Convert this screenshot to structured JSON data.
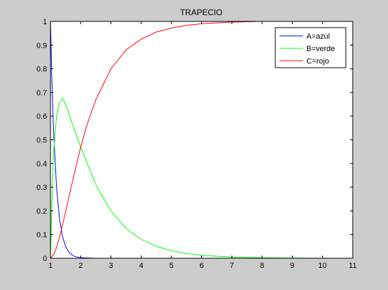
{
  "chart_data": {
    "type": "line",
    "title": "TRAPECIO",
    "xlabel": "",
    "ylabel": "",
    "xlim": [
      1,
      11
    ],
    "ylim": [
      0,
      1
    ],
    "xticks": [
      "1",
      "2",
      "3",
      "4",
      "5",
      "6",
      "7",
      "8",
      "9",
      "10",
      "11"
    ],
    "yticks": [
      "0",
      "0.1",
      "0.2",
      "0.3",
      "0.4",
      "0.5",
      "0.6",
      "0.7",
      "0.8",
      "0.9",
      "1"
    ],
    "grid": false,
    "legend_position": "top-right",
    "colors": {
      "background": "#cccccc",
      "axes": "#ffffff"
    },
    "series": [
      {
        "name": "A=azul",
        "color": "#0000ff",
        "x": [
          1,
          10
        ],
        "y": [
          1,
          0
        ],
        "samples": [
          [
            1.0,
            1.0
          ],
          [
            1.05,
            0.735
          ],
          [
            1.1,
            0.54
          ],
          [
            1.2,
            0.3
          ],
          [
            1.3,
            0.165
          ],
          [
            1.4,
            0.09
          ],
          [
            1.5,
            0.05
          ],
          [
            1.6,
            0.027
          ],
          [
            1.7,
            0.015
          ],
          [
            1.8,
            0.008
          ],
          [
            2.0,
            0.002
          ],
          [
            2.5,
            0.0
          ],
          [
            10.0,
            0.0
          ]
        ]
      },
      {
        "name": "B=verde",
        "color": "#00ff00",
        "x": [
          1,
          10
        ],
        "y": [
          0,
          0
        ],
        "samples": [
          [
            1.0,
            0.0
          ],
          [
            1.05,
            0.255
          ],
          [
            1.1,
            0.445
          ],
          [
            1.2,
            0.6
          ],
          [
            1.3,
            0.66
          ],
          [
            1.4,
            0.675
          ],
          [
            1.5,
            0.65
          ],
          [
            1.7,
            0.575
          ],
          [
            1.9,
            0.505
          ],
          [
            2.0,
            0.47
          ],
          [
            2.5,
            0.31
          ],
          [
            3.0,
            0.2
          ],
          [
            3.5,
            0.125
          ],
          [
            4.0,
            0.08
          ],
          [
            4.5,
            0.05
          ],
          [
            5.0,
            0.032
          ],
          [
            5.5,
            0.02
          ],
          [
            6.0,
            0.012
          ],
          [
            7.0,
            0.005
          ],
          [
            8.0,
            0.002
          ],
          [
            9.0,
            0.001
          ],
          [
            10.0,
            0.0
          ]
        ]
      },
      {
        "name": "C=rojo",
        "color": "#ff0000",
        "x": [
          1,
          7.8
        ],
        "y": [
          0,
          1
        ],
        "samples": [
          [
            1.0,
            0.0
          ],
          [
            1.1,
            0.015
          ],
          [
            1.2,
            0.045
          ],
          [
            1.3,
            0.09
          ],
          [
            1.5,
            0.195
          ],
          [
            1.7,
            0.31
          ],
          [
            2.0,
            0.47
          ],
          [
            2.2,
            0.56
          ],
          [
            2.5,
            0.67
          ],
          [
            3.0,
            0.8
          ],
          [
            3.5,
            0.88
          ],
          [
            4.0,
            0.925
          ],
          [
            4.5,
            0.955
          ],
          [
            5.0,
            0.972
          ],
          [
            5.5,
            0.983
          ],
          [
            6.0,
            0.99
          ],
          [
            6.5,
            0.994
          ],
          [
            7.0,
            0.997
          ],
          [
            7.8,
            0.999
          ]
        ]
      }
    ]
  }
}
